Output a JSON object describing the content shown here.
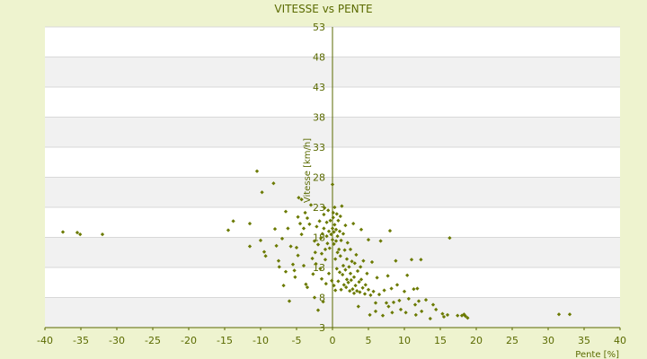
{
  "chart_data": {
    "type": "scatter",
    "title": "VITESSE vs PENTE",
    "xlabel": "Pente [%]",
    "ylabel": "Vitesse [km/h]",
    "xlim": [
      -40,
      40
    ],
    "ylim": [
      3,
      53
    ],
    "x_ticks": [
      "-40",
      "-35",
      "-30",
      "-25",
      "-20",
      "-15",
      "-10",
      "-5",
      "0",
      "5",
      "10",
      "15",
      "20",
      "25",
      "30",
      "35",
      "40"
    ],
    "y_ticks": [
      "53",
      "48",
      "43",
      "38",
      "33",
      "28",
      "23",
      "18",
      "13",
      "8",
      "3"
    ],
    "y_tick_values": [
      53,
      48,
      43,
      38,
      33,
      28,
      23,
      18,
      13,
      8,
      3
    ],
    "grid": true,
    "legend": "none",
    "colors": {
      "background": "#eef3cf",
      "plot_band_light": "#ffffff",
      "plot_band_dark": "#f1f1f1",
      "gridline": "#d8d8d8",
      "axis": "#5a6a00",
      "marker": "#6b7a00",
      "text": "#5a6a00"
    },
    "series": [
      {
        "values": [
          [
            -37.5,
            18.9
          ],
          [
            -35.5,
            18.8
          ],
          [
            -35.1,
            18.5
          ],
          [
            -32,
            18.5
          ],
          [
            -14.5,
            19.2
          ],
          [
            -13.8,
            20.7
          ],
          [
            -11.5,
            20.3
          ],
          [
            -11.5,
            16.5
          ],
          [
            -10.5,
            29.0
          ],
          [
            -10,
            17.5
          ],
          [
            -9.8,
            25.5
          ],
          [
            -9.5,
            15.6
          ],
          [
            -9.3,
            14.9
          ],
          [
            -8.2,
            27.0
          ],
          [
            -8.0,
            19.4
          ],
          [
            -7.8,
            16.6
          ],
          [
            -7.5,
            14.1
          ],
          [
            -7.4,
            13.1
          ],
          [
            -7.0,
            17.8
          ],
          [
            -6.8,
            10.0
          ],
          [
            -6.5,
            12.3
          ],
          [
            -6.5,
            22.3
          ],
          [
            -6.2,
            19.5
          ],
          [
            -6.0,
            7.4
          ],
          [
            -5.8,
            16.5
          ],
          [
            -5.5,
            13.5
          ],
          [
            -5.3,
            12.5
          ],
          [
            -5.2,
            11.4
          ],
          [
            -5.0,
            16.3
          ],
          [
            -4.8,
            15.0
          ],
          [
            -4.8,
            21.4
          ],
          [
            -4.7,
            24.6
          ],
          [
            -4.5,
            20.3
          ],
          [
            -4.3,
            18.5
          ],
          [
            -4.3,
            24.3
          ],
          [
            -4.0,
            19.5
          ],
          [
            -4.0,
            13.3
          ],
          [
            -3.8,
            22.1
          ],
          [
            -3.7,
            10.2
          ],
          [
            -3.5,
            9.7
          ],
          [
            -3.5,
            21.2
          ],
          [
            -3.2,
            20.2
          ],
          [
            -3.0,
            23.4
          ],
          [
            -2.8,
            14.5
          ],
          [
            -2.7,
            11.9
          ],
          [
            -2.5,
            17.4
          ],
          [
            -2.5,
            8.0
          ],
          [
            -2.4,
            15.5
          ],
          [
            -2.3,
            13.6
          ],
          [
            -2.2,
            19.8
          ],
          [
            -2.0,
            16.8
          ],
          [
            -2.0,
            5.9
          ],
          [
            -1.8,
            20.7
          ],
          [
            -1.7,
            12.8
          ],
          [
            -1.6,
            17.9
          ],
          [
            -1.5,
            11.1
          ],
          [
            -1.5,
            15.3
          ],
          [
            -1.4,
            18.6
          ],
          [
            -1.3,
            7.3
          ],
          [
            -1.2,
            21.8
          ],
          [
            -1.2,
            19.5
          ],
          [
            -1.1,
            22.9
          ],
          [
            -1.0,
            16.0
          ],
          [
            -1.0,
            14.3
          ],
          [
            -0.9,
            10.3
          ],
          [
            -0.8,
            20.5
          ],
          [
            -0.8,
            18.2
          ],
          [
            -0.7,
            17.0
          ],
          [
            -0.6,
            22.5
          ],
          [
            -0.5,
            19.0
          ],
          [
            -0.5,
            12.0
          ],
          [
            -0.4,
            16.2
          ],
          [
            -0.3,
            20.8
          ],
          [
            -0.2,
            18.5
          ],
          [
            -0.1,
            10.8
          ],
          [
            0.0,
            26.8
          ],
          [
            0.0,
            19.5
          ],
          [
            0.0,
            17.6
          ],
          [
            0.1,
            22.1
          ],
          [
            0.1,
            21.3
          ],
          [
            0.2,
            18.9
          ],
          [
            0.2,
            10.0
          ],
          [
            0.2,
            16.9
          ],
          [
            0.3,
            20.1
          ],
          [
            0.3,
            23.0
          ],
          [
            0.4,
            14.4
          ],
          [
            0.4,
            9.2
          ],
          [
            0.5,
            19.3
          ],
          [
            0.5,
            17.4
          ],
          [
            0.6,
            21.9
          ],
          [
            0.6,
            12.8
          ],
          [
            0.7,
            18.2
          ],
          [
            0.7,
            15.5
          ],
          [
            0.8,
            20.8
          ],
          [
            0.8,
            10.7
          ],
          [
            0.9,
            16.0
          ],
          [
            1.0,
            19.0
          ],
          [
            1.0,
            12.2
          ],
          [
            1.1,
            21.5
          ],
          [
            1.1,
            14.9
          ],
          [
            1.2,
            9.3
          ],
          [
            1.2,
            17.5
          ],
          [
            1.3,
            23.2
          ],
          [
            1.4,
            11.8
          ],
          [
            1.5,
            13.3
          ],
          [
            1.5,
            18.6
          ],
          [
            1.6,
            10.1
          ],
          [
            1.7,
            15.9
          ],
          [
            1.8,
            20.0
          ],
          [
            1.8,
            12.6
          ],
          [
            1.9,
            9.7
          ],
          [
            2.0,
            14.4
          ],
          [
            2.0,
            11.0
          ],
          [
            2.1,
            17.1
          ],
          [
            2.2,
            10.5
          ],
          [
            2.3,
            13.1
          ],
          [
            2.4,
            9.1
          ],
          [
            2.5,
            12.0
          ],
          [
            2.5,
            16.0
          ],
          [
            2.6,
            10.9
          ],
          [
            2.7,
            14.0
          ],
          [
            2.8,
            9.4
          ],
          [
            2.9,
            20.3
          ],
          [
            3.0,
            11.4
          ],
          [
            3.0,
            8.7
          ],
          [
            3.1,
            13.7
          ],
          [
            3.2,
            10.0
          ],
          [
            3.3,
            15.1
          ],
          [
            3.4,
            9.1
          ],
          [
            3.5,
            12.4
          ],
          [
            3.6,
            6.5
          ],
          [
            3.7,
            10.6
          ],
          [
            3.8,
            8.9
          ],
          [
            3.9,
            13.1
          ],
          [
            4.0,
            19.3
          ],
          [
            4.0,
            11.0
          ],
          [
            4.2,
            9.6
          ],
          [
            4.3,
            14.1
          ],
          [
            4.5,
            8.6
          ],
          [
            4.6,
            10.1
          ],
          [
            4.8,
            12.0
          ],
          [
            5.0,
            9.3
          ],
          [
            5.0,
            17.6
          ],
          [
            5.2,
            5.1
          ],
          [
            5.3,
            8.4
          ],
          [
            5.5,
            13.9
          ],
          [
            5.7,
            9.0
          ],
          [
            6.0,
            5.7
          ],
          [
            6.0,
            7.1
          ],
          [
            6.2,
            11.3
          ],
          [
            6.5,
            8.5
          ],
          [
            6.7,
            17.4
          ],
          [
            7.0,
            5.0
          ],
          [
            7.2,
            9.2
          ],
          [
            7.5,
            7.1
          ],
          [
            7.7,
            11.6
          ],
          [
            7.8,
            6.5
          ],
          [
            8.0,
            19.1
          ],
          [
            8.2,
            9.5
          ],
          [
            8.3,
            5.5
          ],
          [
            8.5,
            7.2
          ],
          [
            8.8,
            14.1
          ],
          [
            9.0,
            10.1
          ],
          [
            9.3,
            7.5
          ],
          [
            9.5,
            6.0
          ],
          [
            10.0,
            9.0
          ],
          [
            10.2,
            5.5
          ],
          [
            10.4,
            11.7
          ],
          [
            10.6,
            7.8
          ],
          [
            11.0,
            14.3
          ],
          [
            11.3,
            9.4
          ],
          [
            11.5,
            6.8
          ],
          [
            11.6,
            5.1
          ],
          [
            11.8,
            9.5
          ],
          [
            12.0,
            7.4
          ],
          [
            12.3,
            14.3
          ],
          [
            12.4,
            5.7
          ],
          [
            13.0,
            7.6
          ],
          [
            13.6,
            4.5
          ],
          [
            14.0,
            6.8
          ],
          [
            14.4,
            6.0
          ],
          [
            15.3,
            5.3
          ],
          [
            15.5,
            4.8
          ],
          [
            16.0,
            5.1
          ],
          [
            16.3,
            17.9
          ],
          [
            17.4,
            5.0
          ],
          [
            18.0,
            5.0
          ],
          [
            18.3,
            5.2
          ],
          [
            18.5,
            4.9
          ],
          [
            18.8,
            4.6
          ],
          [
            31.5,
            5.2
          ],
          [
            33.0,
            5.2
          ]
        ]
      }
    ]
  }
}
